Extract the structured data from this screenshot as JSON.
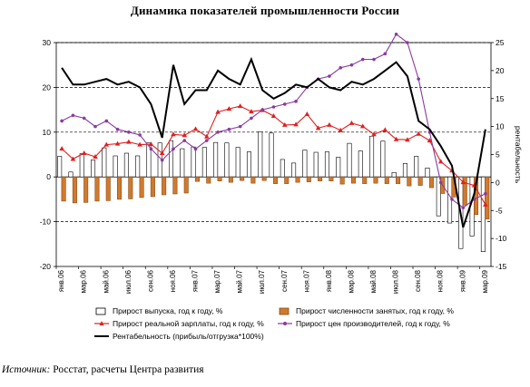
{
  "chart_data": {
    "type": "bar+line",
    "title": "Динамика показателей промышленности России",
    "y_left": {
      "min": -20,
      "max": 30,
      "ticks": [
        -20,
        -10,
        0,
        10,
        20,
        30
      ],
      "gridlines": [
        -10,
        10,
        20,
        30
      ]
    },
    "y_right": {
      "label": "рентабельность",
      "min": -15,
      "max": 25,
      "ticks": [
        -15,
        -10,
        -5,
        0,
        5,
        10,
        15,
        20,
        25
      ]
    },
    "x_tick_labels": [
      "янв.06",
      "мар.06",
      "май.06",
      "июл.06",
      "сен.06",
      "ноя.06",
      "янв.07",
      "мар.07",
      "май.07",
      "июл.07",
      "сен.07",
      "ноя.07",
      "янв.08",
      "мар.08",
      "май.08",
      "июл.08",
      "сен.08",
      "ноя.08",
      "янв.09",
      "мар.09"
    ],
    "months": 39,
    "legend_position": "bottom",
    "series": [
      {
        "name": "Прирост выпуска, год к году, %",
        "type": "bar",
        "axis": "left",
        "color": "#ffffff",
        "stroke": "#000000",
        "values": [
          4.6,
          1.1,
          5.2,
          3.8,
          6.5,
          4.7,
          5.3,
          4.7,
          7.6,
          7.6,
          8.1,
          6.3,
          6.7,
          6.6,
          7.7,
          7.6,
          6.6,
          5.6,
          10.1,
          9.8,
          3.9,
          3.1,
          6.0,
          5.5,
          5.6,
          4.4,
          7.5,
          5.8,
          9.1,
          8.0,
          1.0,
          3.0,
          4.6,
          2.0,
          -8.7,
          -10.3,
          -16.0,
          -13.2,
          -16.7
        ]
      },
      {
        "name": "Прирост численности занятых, год к году, %",
        "type": "bar",
        "axis": "left",
        "color": "#d07a2e",
        "stroke": "#8a4a10",
        "values": [
          -5.4,
          -5.8,
          -5.7,
          -5.4,
          -5.3,
          -5.0,
          -4.9,
          -4.6,
          -4.4,
          -4.0,
          -3.8,
          -3.6,
          -1.0,
          -1.4,
          -0.9,
          -1.2,
          -0.8,
          -1.4,
          -0.8,
          -1.5,
          -1.5,
          -1.2,
          -1.1,
          -0.9,
          -0.9,
          -1.6,
          -1.4,
          -1.5,
          -1.4,
          -1.5,
          -1.5,
          -2.0,
          -1.9,
          -2.4,
          -3.7,
          -4.5,
          -6.3,
          -8.4,
          -9.4
        ]
      },
      {
        "name": "Прирост реальной зарплаты, год к году, %",
        "type": "line",
        "axis": "left",
        "color": "#e02020",
        "marker": "triangle",
        "values": [
          6.3,
          4.0,
          5.3,
          4.5,
          7.2,
          7.4,
          7.8,
          7.2,
          7.3,
          5.3,
          9.5,
          9.3,
          10.7,
          9.0,
          14.5,
          15.2,
          15.8,
          14.6,
          14.9,
          13.6,
          11.6,
          11.7,
          14.0,
          10.9,
          11.6,
          10.4,
          12.0,
          11.3,
          9.5,
          10.5,
          8.4,
          8.3,
          9.6,
          8.1,
          3.4,
          1.4,
          -1.2,
          -1.9,
          -6.2
        ]
      },
      {
        "name": "Прирост цен производителей, год к году, %",
        "type": "line",
        "axis": "right",
        "color": "#8a3aa0",
        "marker": "circle",
        "values": [
          11.0,
          12.0,
          11.5,
          10.0,
          11.0,
          9.5,
          9.0,
          8.5,
          6.0,
          4.0,
          6.0,
          7.5,
          6.0,
          7.5,
          9.0,
          9.5,
          10.0,
          11.5,
          13.0,
          13.5,
          14.0,
          14.5,
          17.0,
          18.5,
          19.0,
          20.5,
          21.0,
          22.0,
          22.0,
          23.0,
          26.5,
          25.0,
          18.5,
          9.0,
          0.0,
          -3.0,
          -4.5,
          -3.0,
          -2.0
        ]
      },
      {
        "name": "Рентабельность (прибыль/отгрузка*100%)",
        "type": "line",
        "axis": "right",
        "color": "#000000",
        "marker": "none",
        "values": [
          20.5,
          17.5,
          17.5,
          18.0,
          18.5,
          17.5,
          18.0,
          17.0,
          14.0,
          8.0,
          21.0,
          14.0,
          16.5,
          16.5,
          20.0,
          18.5,
          17.5,
          22.0,
          16.5,
          15.0,
          16.0,
          17.5,
          17.0,
          18.5,
          17.0,
          16.5,
          18.0,
          17.5,
          18.5,
          20.0,
          21.5,
          19.0,
          11.0,
          9.5,
          6.5,
          3.0,
          -8.0,
          -2.0,
          9.5
        ]
      }
    ]
  },
  "source": {
    "label": "Источник:",
    "text": "Росстат, расчеты Центра развития"
  }
}
